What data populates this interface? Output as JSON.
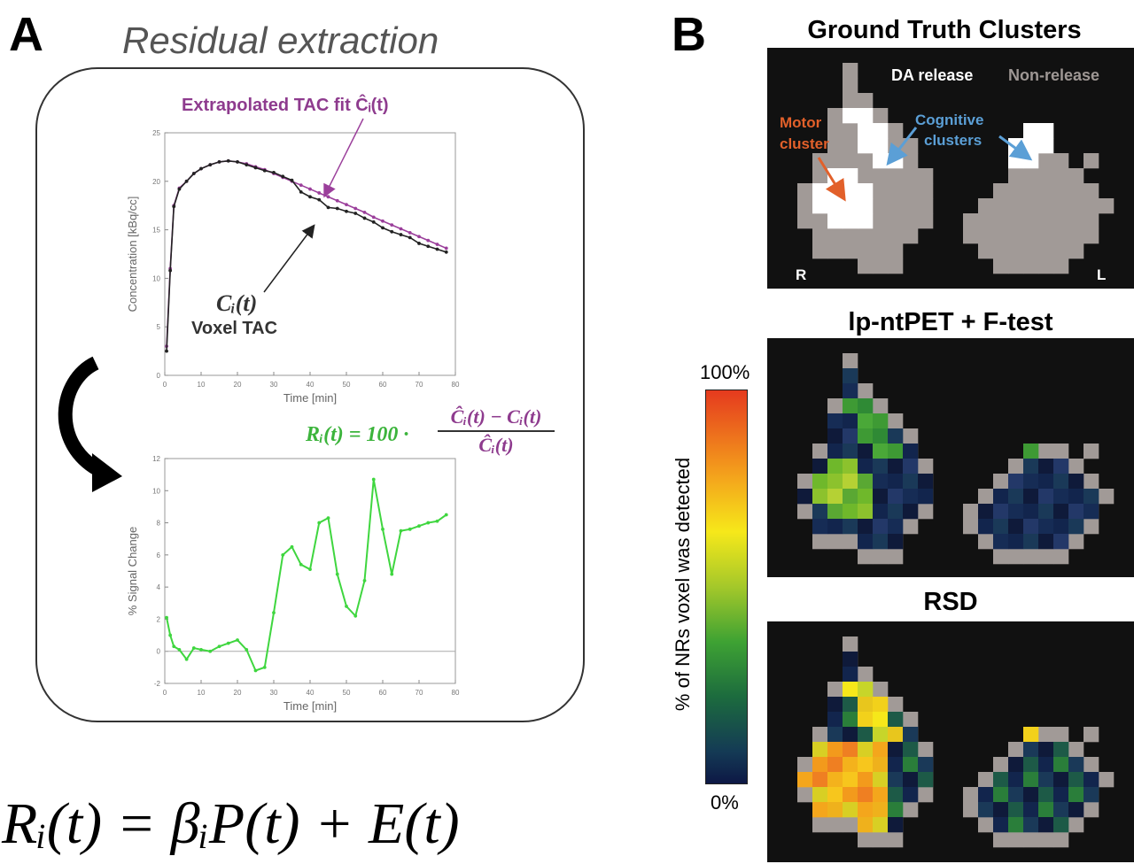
{
  "panelA": {
    "letter": "A",
    "title": "Residual extraction",
    "annot_fit": "Extrapolated TAC fit Ĉᵢ(t)",
    "annot_ci": "Cᵢ(t)",
    "annot_voxel": "Voxel TAC",
    "eq_lhs": "Rᵢ(t) = 100 ·",
    "eq_num": "Ĉᵢ(t) − Cᵢ(t)",
    "eq_den": "Ĉᵢ(t)",
    "bottom_eq": "Rᵢ(t) = βᵢP(t) + E(t)"
  },
  "panelB": {
    "letter": "B",
    "gt_title": "Ground Truth Clusters",
    "legend_release": "DA release",
    "legend_nonrelease": "Non-release",
    "motor_label_1": "Motor",
    "motor_label_2": "cluster",
    "cog_label_1": "Cognitive",
    "cog_label_2": "clusters",
    "side_R": "R",
    "side_L": "L",
    "lp_title": "lp-ntPET + F-test",
    "rsd_title": "RSD",
    "colorbar_top": "100%",
    "colorbar_bottom": "0%",
    "colorbar_label": "% of NRs voxel was detected"
  },
  "chart_data": [
    {
      "type": "line",
      "xlabel": "Time [min]",
      "ylabel": "Concentration [kBq/cc]",
      "xlim": [
        0,
        80
      ],
      "ylim": [
        0,
        25
      ],
      "xticks": [
        0,
        10,
        20,
        30,
        40,
        50,
        60,
        70,
        80
      ],
      "yticks": [
        0,
        5,
        10,
        15,
        20,
        25
      ],
      "series": [
        {
          "name": "Extrapolated TAC fit",
          "color": "#9b3f9b",
          "x": [
            0.5,
            1.5,
            2.5,
            4,
            6,
            8,
            10,
            12.5,
            15,
            17.5,
            20,
            22.5,
            25,
            27.5,
            30,
            32.5,
            35,
            37.5,
            40,
            42.5,
            45,
            47.5,
            50,
            52.5,
            55,
            57.5,
            60,
            62.5,
            65,
            67.5,
            70,
            72.5,
            75,
            77.5
          ],
          "values": [
            3,
            11,
            17.5,
            19.3,
            20,
            20.8,
            21.3,
            21.7,
            22,
            22.1,
            22,
            21.8,
            21.5,
            21.2,
            20.8,
            20.4,
            20,
            19.6,
            19.2,
            18.8,
            18.4,
            18,
            17.6,
            17.2,
            16.8,
            16.3,
            15.9,
            15.5,
            15.1,
            14.7,
            14.3,
            13.9,
            13.5,
            13.1
          ]
        },
        {
          "name": "Voxel TAC",
          "color": "#222222",
          "x": [
            0.5,
            1.5,
            2.5,
            4,
            6,
            8,
            10,
            12.5,
            15,
            17.5,
            20,
            22.5,
            25,
            27.5,
            30,
            32.5,
            35,
            37.5,
            40,
            42.5,
            45,
            47.5,
            50,
            52.5,
            55,
            57.5,
            60,
            62.5,
            65,
            67.5,
            70,
            72.5,
            75,
            77.5
          ],
          "values": [
            2.5,
            10.8,
            17.4,
            19.2,
            20,
            20.8,
            21.3,
            21.7,
            22,
            22.1,
            22,
            21.7,
            21.4,
            21.1,
            20.9,
            20.5,
            20.1,
            18.9,
            18.4,
            18.1,
            17.3,
            17.2,
            16.9,
            16.7,
            16.2,
            15.8,
            15.2,
            14.8,
            14.5,
            14.2,
            13.6,
            13.3,
            13,
            12.7
          ]
        }
      ]
    },
    {
      "type": "line",
      "xlabel": "Time [min]",
      "ylabel": "% Signal Change",
      "xlim": [
        0,
        80
      ],
      "ylim": [
        -2,
        12
      ],
      "xticks": [
        0,
        10,
        20,
        30,
        40,
        50,
        60,
        70,
        80
      ],
      "yticks": [
        -2,
        0,
        2,
        4,
        6,
        8,
        10,
        12
      ],
      "series": [
        {
          "name": "Rᵢ(t)",
          "color": "#3fd63f",
          "x": [
            0.5,
            1.5,
            2.5,
            4,
            6,
            8,
            10,
            12.5,
            15,
            17.5,
            20,
            22.5,
            25,
            27.5,
            30,
            32.5,
            35,
            37.5,
            40,
            42.5,
            45,
            47.5,
            50,
            52.5,
            55,
            57.5,
            60,
            62.5,
            65,
            67.5,
            70,
            72.5,
            75,
            77.5
          ],
          "values": [
            2.1,
            1.0,
            0.3,
            0.1,
            -0.5,
            0.2,
            0.1,
            0.0,
            0.3,
            0.5,
            0.7,
            0.1,
            -1.2,
            -1.0,
            2.4,
            6.0,
            6.5,
            5.4,
            5.1,
            8.0,
            8.3,
            4.8,
            2.8,
            2.2,
            4.4,
            10.7,
            7.6,
            4.8,
            7.5,
            7.6,
            7.8,
            8.0,
            8.1,
            8.5
          ]
        }
      ]
    }
  ]
}
